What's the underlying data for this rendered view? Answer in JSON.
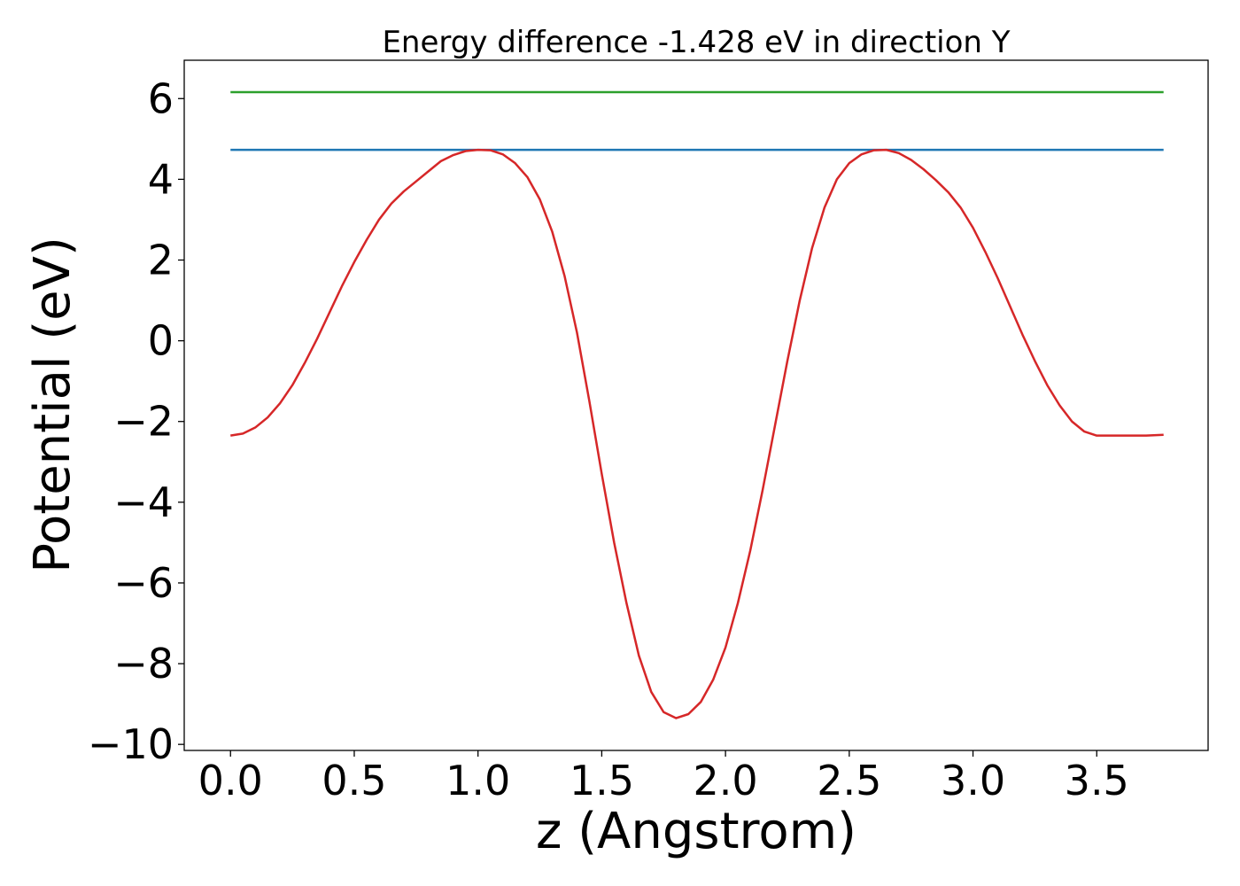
{
  "chart_data": {
    "type": "line",
    "title": "Energy difference -1.428 eV in direction Y",
    "xlabel": "z (Angstrom)",
    "ylabel": "Potential (eV)",
    "xlim": [
      -0.187,
      3.95
    ],
    "ylim": [
      -10.15,
      6.95
    ],
    "x_ticks": [
      {
        "value": 0.0,
        "label": "0.0"
      },
      {
        "value": 0.5,
        "label": "0.5"
      },
      {
        "value": 1.0,
        "label": "1.0"
      },
      {
        "value": 1.5,
        "label": "1.5"
      },
      {
        "value": 2.0,
        "label": "2.0"
      },
      {
        "value": 2.5,
        "label": "2.5"
      },
      {
        "value": 3.0,
        "label": "3.0"
      },
      {
        "value": 3.5,
        "label": "3.5"
      }
    ],
    "y_ticks": [
      {
        "value": 6,
        "label": "6"
      },
      {
        "value": 4,
        "label": "4"
      },
      {
        "value": 2,
        "label": "2"
      },
      {
        "value": 0,
        "label": "0"
      },
      {
        "value": -2,
        "label": "−2"
      },
      {
        "value": -4,
        "label": "−4"
      },
      {
        "value": -6,
        "label": "−6"
      },
      {
        "value": -8,
        "label": "−8"
      },
      {
        "value": -10,
        "label": "−10"
      }
    ],
    "grid": false,
    "series": [
      {
        "color": "#2ca02c",
        "x": [
          0.0,
          3.77
        ],
        "y": [
          6.16,
          6.16
        ]
      },
      {
        "color": "#1f77b4",
        "x": [
          0.0,
          3.77
        ],
        "y": [
          4.73,
          4.73
        ]
      },
      {
        "color": "#d62728",
        "x": [
          0.0,
          0.05,
          0.1,
          0.15,
          0.2,
          0.25,
          0.3,
          0.35,
          0.4,
          0.45,
          0.5,
          0.55,
          0.6,
          0.65,
          0.7,
          0.75,
          0.8,
          0.85,
          0.9,
          0.95,
          1.0,
          1.05,
          1.1,
          1.15,
          1.2,
          1.25,
          1.3,
          1.35,
          1.4,
          1.45,
          1.5,
          1.55,
          1.6,
          1.65,
          1.7,
          1.75,
          1.8,
          1.85,
          1.9,
          1.95,
          2.0,
          2.05,
          2.1,
          2.15,
          2.2,
          2.25,
          2.3,
          2.35,
          2.4,
          2.45,
          2.5,
          2.55,
          2.6,
          2.65,
          2.7,
          2.75,
          2.8,
          2.85,
          2.9,
          2.95,
          3.0,
          3.05,
          3.1,
          3.15,
          3.2,
          3.25,
          3.3,
          3.35,
          3.4,
          3.45,
          3.5,
          3.55,
          3.6,
          3.65,
          3.7,
          3.77
        ],
        "y": [
          -2.35,
          -2.3,
          -2.15,
          -1.9,
          -1.55,
          -1.1,
          -0.55,
          0.05,
          0.7,
          1.35,
          1.95,
          2.5,
          3.0,
          3.4,
          3.7,
          3.95,
          4.2,
          4.45,
          4.6,
          4.7,
          4.73,
          4.72,
          4.62,
          4.4,
          4.05,
          3.5,
          2.7,
          1.6,
          0.2,
          -1.5,
          -3.3,
          -5.0,
          -6.5,
          -7.8,
          -8.7,
          -9.2,
          -9.35,
          -9.25,
          -8.95,
          -8.4,
          -7.6,
          -6.5,
          -5.2,
          -3.7,
          -2.1,
          -0.5,
          1.0,
          2.3,
          3.3,
          4.0,
          4.4,
          4.62,
          4.72,
          4.73,
          4.65,
          4.48,
          4.25,
          3.98,
          3.68,
          3.3,
          2.8,
          2.2,
          1.55,
          0.85,
          0.15,
          -0.5,
          -1.1,
          -1.6,
          -2.0,
          -2.25,
          -2.35,
          -2.35,
          -2.35,
          -2.35,
          -2.35,
          -2.33
        ]
      }
    ]
  }
}
